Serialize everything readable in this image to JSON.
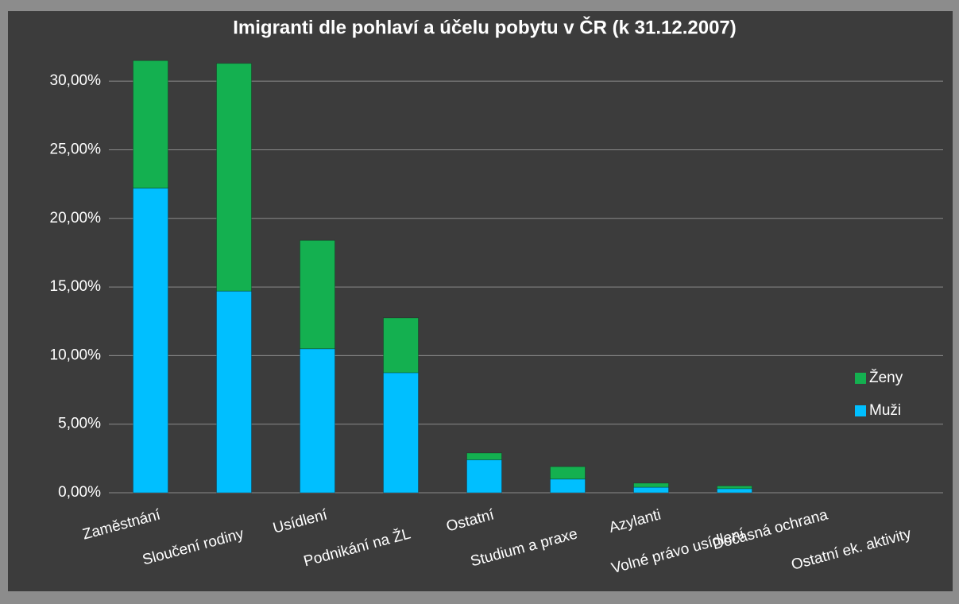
{
  "chart_data": {
    "type": "stacked_bar",
    "title": "Imigranti dle pohlaví a účelu pobytu v ČR (k 31.12.2007)",
    "categories": [
      "Zaměstnání",
      "Sloučení rodiny",
      "Usídlení",
      "Podnikání na ŽL",
      "Ostatní",
      "Studium a praxe",
      "Azylanti",
      "Volné právo usídlení",
      "Dočasná ochrana",
      "Ostatní ek. aktivity"
    ],
    "series": [
      {
        "name": "Muži",
        "color": "#00bfff",
        "values": [
          22.2,
          14.7,
          10.5,
          8.75,
          2.4,
          1.0,
          0.4,
          0.3,
          0,
          0
        ]
      },
      {
        "name": "Ženy",
        "color": "#14b050",
        "values": [
          9.3,
          16.6,
          7.9,
          4.0,
          0.5,
          0.9,
          0.3,
          0.2,
          0,
          0
        ]
      }
    ],
    "ylim": [
      0,
      32.5
    ],
    "yticks": [
      {
        "value": 0,
        "label": "0,00%"
      },
      {
        "value": 5,
        "label": "5,00%"
      },
      {
        "value": 10,
        "label": "10,00%"
      },
      {
        "value": 15,
        "label": "15,00%"
      },
      {
        "value": 20,
        "label": "20,00%"
      },
      {
        "value": 25,
        "label": "25,00%"
      },
      {
        "value": 30,
        "label": "30,00%"
      }
    ],
    "grid": true,
    "legend": "right"
  }
}
